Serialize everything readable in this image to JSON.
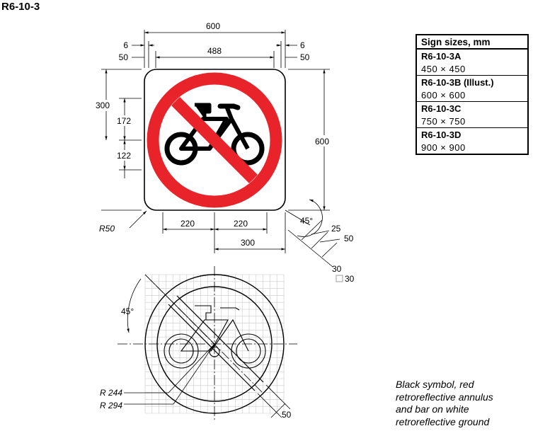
{
  "title": "R6-10-3",
  "sizes_table": {
    "header": "Sign sizes, mm",
    "rows": [
      {
        "code": "R6-10-3A",
        "dims": "450 × 450"
      },
      {
        "code": "R6-10-3B (Illust.)",
        "dims": "600 × 600"
      },
      {
        "code": "R6-10-3C",
        "dims": "750 × 750"
      },
      {
        "code": "R6-10-3D",
        "dims": "900 × 900"
      }
    ]
  },
  "dimensions": {
    "top_width": "600",
    "top_margin_left": "6",
    "top_margin_right": "6",
    "inner_left": "50",
    "inner_right": "50",
    "inner_width": "488",
    "left_height": "300",
    "left_upper": "172",
    "left_lower": "122",
    "right_height": "600",
    "corner_radius": "R50",
    "bottom_left": "220",
    "bottom_right": "220",
    "bottom_total": "300",
    "angle_top": "45°",
    "bar_inner": "25",
    "bar_outer": "50",
    "grid_a": "30",
    "grid_b": "30",
    "angle_grid": "45°",
    "r_inner": "R 244",
    "r_outer": "R 294",
    "bar_width": "50"
  },
  "colors": {
    "annulus": "#e8232a",
    "symbol": "#000000",
    "ground": "#ffffff",
    "grid": "#c8c8c8"
  },
  "note_lines": [
    "Black symbol, red",
    "retroreflective annulus",
    "and bar on white",
    "retroreflective ground"
  ]
}
